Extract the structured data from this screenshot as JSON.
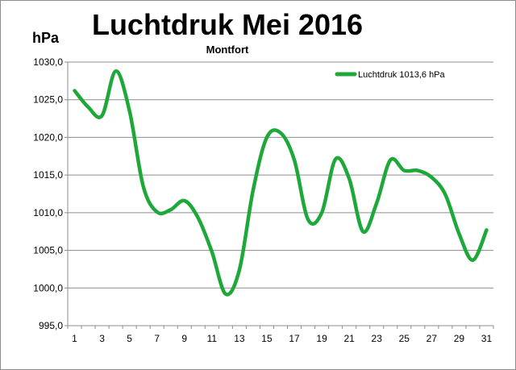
{
  "chart_data": {
    "type": "line",
    "title": "Luchtdruk Mei 2016",
    "subtitle": "Montfort",
    "ylabel": "hPa",
    "xlabel": "",
    "x": [
      1,
      2,
      3,
      4,
      5,
      6,
      7,
      8,
      9,
      10,
      11,
      12,
      13,
      14,
      15,
      16,
      17,
      18,
      19,
      20,
      21,
      22,
      23,
      24,
      25,
      26,
      27,
      28,
      29,
      30,
      31
    ],
    "x_tick_labels": [
      "1",
      "3",
      "5",
      "7",
      "9",
      "11",
      "13",
      "15",
      "17",
      "19",
      "21",
      "23",
      "25",
      "27",
      "29",
      "31"
    ],
    "ylim": [
      995.0,
      1030.0
    ],
    "y_tick_labels": [
      "1030,0",
      "1025,0",
      "1020,0",
      "1015,0",
      "1010,0",
      "1005,0",
      "1000,0",
      "995,0"
    ],
    "grid": "horizontal",
    "legend": "top-right",
    "series": [
      {
        "name": "Luchtdruk 1013,6 hPa",
        "color": "#1fa83a",
        "values": [
          1026.2,
          1024.0,
          1022.9,
          1028.8,
          1023.5,
          1013.5,
          1010.1,
          1010.4,
          1011.6,
          1009.3,
          1004.8,
          999.2,
          1002.4,
          1013.0,
          1020.0,
          1020.6,
          1017.0,
          1009.1,
          1010.0,
          1017.1,
          1014.5,
          1007.5,
          1011.3,
          1017.0,
          1015.6,
          1015.6,
          1014.7,
          1012.4,
          1007.2,
          1003.7,
          1007.7
        ]
      }
    ]
  }
}
